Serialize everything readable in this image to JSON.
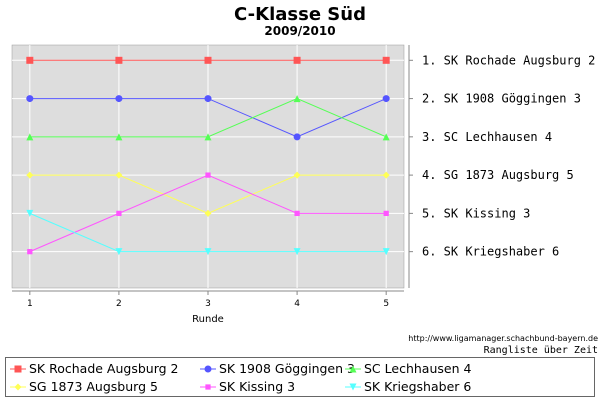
{
  "chart_data": {
    "type": "line",
    "title": "C-Klasse Süd",
    "subtitle": "2009/2010",
    "xlabel": "Runde",
    "ylabel": "",
    "x": [
      1,
      2,
      3,
      4,
      5
    ],
    "xlim": [
      0.8,
      5.2
    ],
    "ylim": [
      0.6,
      6.95
    ],
    "y_inverted": true,
    "grid": true,
    "legend_position": "bottom",
    "source": "http://www.ligamanager.schachbund-bayern.de",
    "note": "Rangliste über Zeit",
    "final_ranking_labels": [
      "1. SK Rochade Augsburg 2",
      "2. SK 1908 Göggingen 3",
      "3. SC Lechhausen 4",
      "4. SG 1873 Augsburg 5",
      "5. SK Kissing 3",
      "6. SK Kriegshaber 6"
    ],
    "series": [
      {
        "name": "SK Rochade Augsburg 2",
        "values": [
          1,
          1,
          1,
          1,
          1
        ],
        "color": "#ff5555",
        "marker": "square"
      },
      {
        "name": "SK 1908 Göggingen 3",
        "values": [
          2,
          2,
          2,
          3,
          2
        ],
        "color": "#5555ff",
        "marker": "circle"
      },
      {
        "name": "SC Lechhausen 4",
        "values": [
          3,
          3,
          3,
          2,
          3
        ],
        "color": "#55ff55",
        "marker": "triangle-up"
      },
      {
        "name": "SG 1873 Augsburg 5",
        "values": [
          4,
          4,
          5,
          4,
          4
        ],
        "color": "#ffff55",
        "marker": "diamond"
      },
      {
        "name": "SK Kissing 3",
        "values": [
          6,
          5,
          4,
          5,
          5
        ],
        "color": "#ff55ff",
        "marker": "square-small"
      },
      {
        "name": "SK Kriegshaber 6",
        "values": [
          5,
          6,
          6,
          6,
          6
        ],
        "color": "#55ffff",
        "marker": "triangle-down"
      }
    ]
  }
}
